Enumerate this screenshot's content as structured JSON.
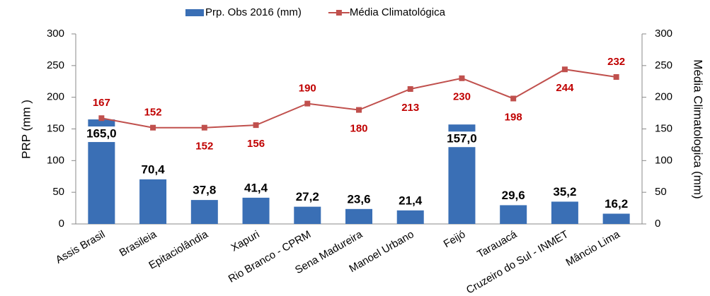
{
  "chart_data": {
    "type": "bar",
    "categories": [
      "Assis Brasil",
      "Brasileia",
      "Epitaciolândia",
      "Xapuri",
      "Rio Branco - CPRM",
      "Sena Madureira",
      "Manoel Urbano",
      "Feijó",
      "Tarauacá",
      "Cruzeiro do Sul - INMET",
      "Mâncio Lima"
    ],
    "series": [
      {
        "name": "Prp. Obs 2016 (mm)",
        "type": "bar",
        "color": "#3a6fb5",
        "values": [
          165.0,
          70.4,
          37.8,
          41.4,
          27.2,
          23.6,
          21.4,
          157.0,
          29.6,
          35.2,
          16.2
        ],
        "value_labels": [
          "165,0",
          "70,4",
          "37,8",
          "41,4",
          "27,2",
          "23,6",
          "21,4",
          "157,0",
          "29,6",
          "35,2",
          "16,2"
        ]
      },
      {
        "name": "Média Climatológica",
        "type": "line",
        "axis": "y2",
        "color": "#c0504d",
        "values": [
          167,
          152,
          152,
          156,
          190,
          180,
          213,
          230,
          198,
          244,
          232
        ]
      }
    ],
    "y_label": "PRP (mm )",
    "y2_label": "Média Climatologica (mm)",
    "ylim": [
      0,
      300
    ],
    "yticks": [
      0,
      50,
      100,
      150,
      200,
      250,
      300
    ],
    "y2lim": [
      0,
      300
    ],
    "y2ticks": [
      0,
      50,
      100,
      150,
      200,
      250,
      300
    ],
    "legend": "top"
  }
}
